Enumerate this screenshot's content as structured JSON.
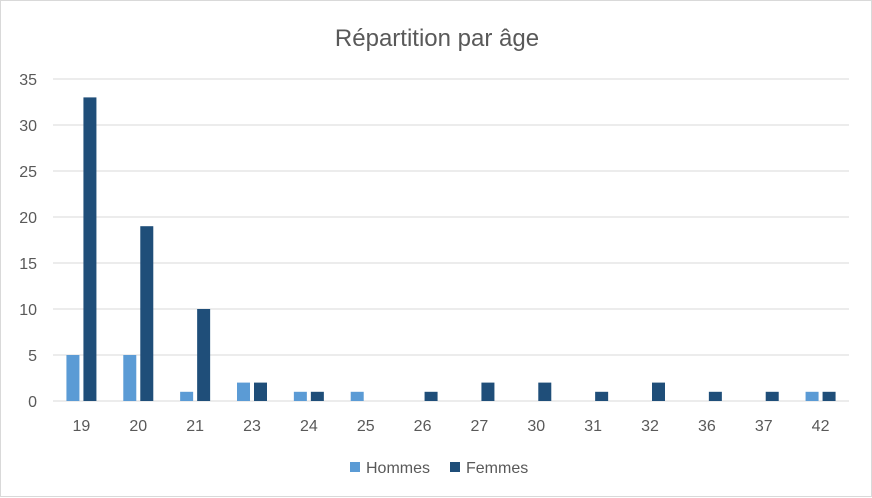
{
  "chart_data": {
    "type": "bar",
    "title": "Répartition par âge",
    "xlabel": "",
    "ylabel": "",
    "categories": [
      "19",
      "20",
      "21",
      "23",
      "24",
      "25",
      "26",
      "27",
      "30",
      "31",
      "32",
      "36",
      "37",
      "42"
    ],
    "series": [
      {
        "name": "Hommes",
        "color": "#5b9bd5",
        "values": [
          5,
          5,
          1,
          2,
          1,
          1,
          0,
          0,
          0,
          0,
          0,
          0,
          0,
          1
        ]
      },
      {
        "name": "Femmes",
        "color": "#1f4e79",
        "values": [
          33,
          19,
          10,
          2,
          1,
          0,
          1,
          2,
          2,
          1,
          2,
          1,
          1,
          1
        ]
      }
    ],
    "ylim": [
      0,
      35
    ],
    "yticks": [
      0,
      5,
      10,
      15,
      20,
      25,
      30,
      35
    ],
    "grid": true,
    "legend_position": "bottom"
  }
}
